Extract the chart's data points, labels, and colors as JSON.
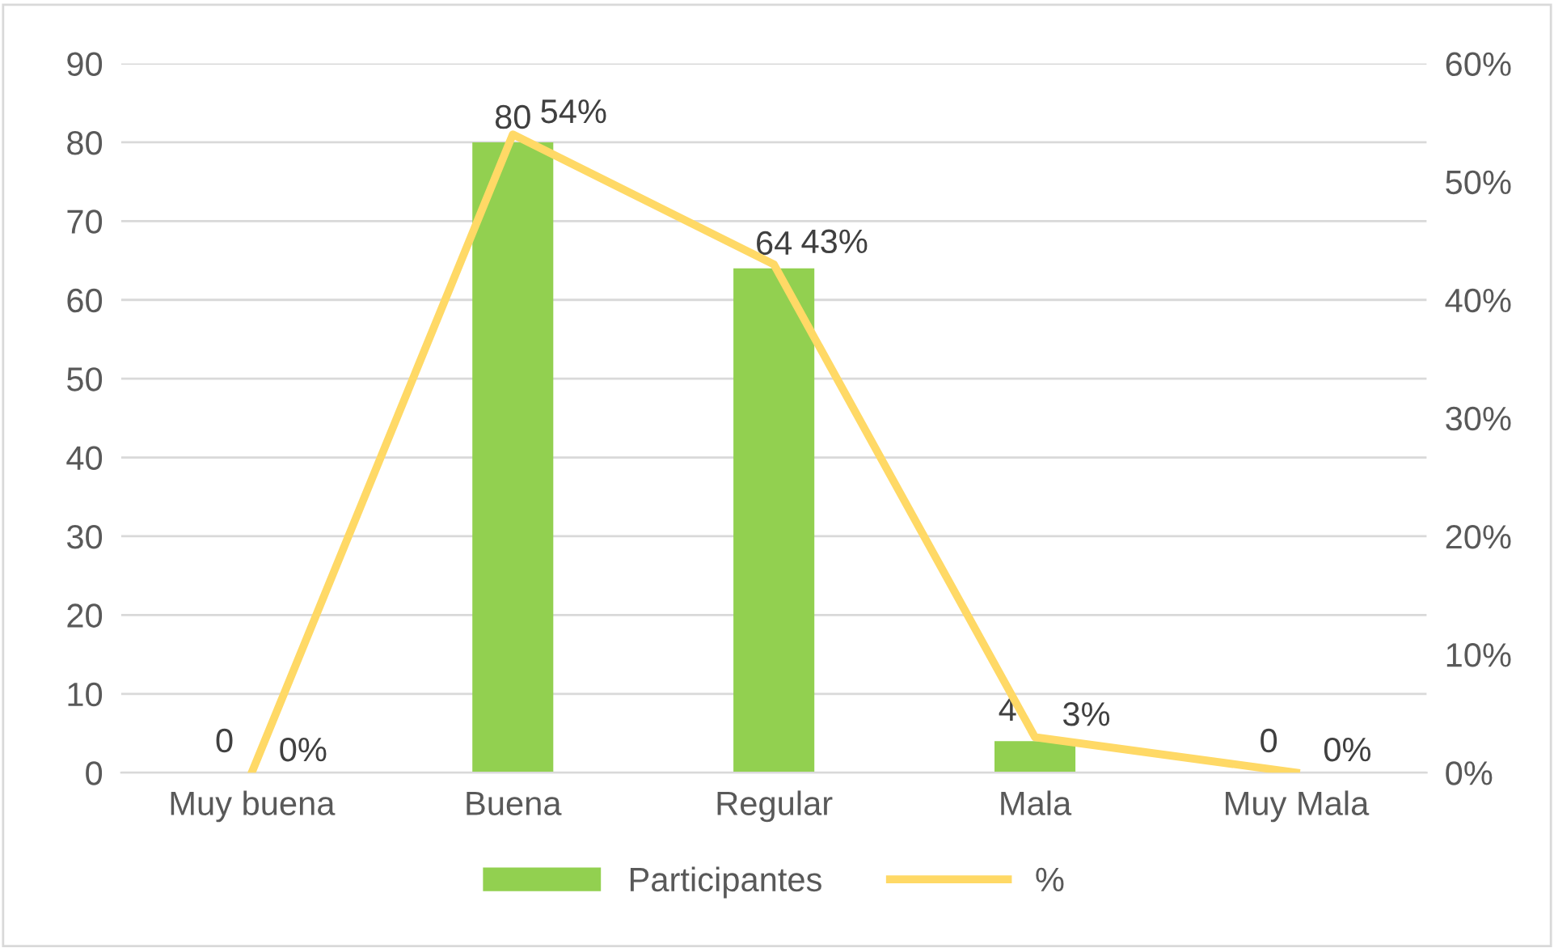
{
  "chart_data": {
    "type": "bar",
    "categories": [
      "Muy buena",
      "Buena",
      "Regular",
      "Mala",
      "Muy Mala"
    ],
    "series": [
      {
        "name": "Participantes",
        "color": "#92d050",
        "values": [
          0,
          80,
          64,
          4,
          0
        ],
        "value_labels": [
          "0",
          "80",
          "64",
          "4",
          "0"
        ]
      },
      {
        "name": "%",
        "type": "line",
        "axis": "y2",
        "color": "#ffd966",
        "values": [
          0,
          54,
          43,
          3,
          0
        ],
        "value_labels": [
          "0%",
          "54%",
          "43%",
          "3%",
          "0%"
        ]
      }
    ],
    "ylim": [
      0,
      90
    ],
    "yticks": [
      0,
      10,
      20,
      30,
      40,
      50,
      60,
      70,
      80,
      90
    ],
    "y2lim": [
      0,
      60
    ],
    "y2ticks": [
      {
        "value": 0,
        "label": "0%"
      },
      {
        "value": 10,
        "label": "10%"
      },
      {
        "value": 20,
        "label": "20%"
      },
      {
        "value": 30,
        "label": "30%"
      },
      {
        "value": 40,
        "label": "40%"
      },
      {
        "value": 50,
        "label": "50%"
      },
      {
        "value": 60,
        "label": "60%"
      }
    ],
    "grid": "y",
    "legend": "bottom",
    "marker": "none",
    "line_style": "solid"
  }
}
